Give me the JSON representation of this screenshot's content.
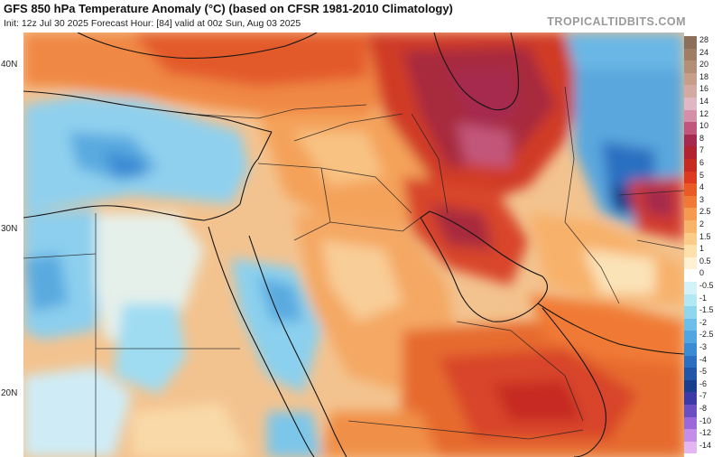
{
  "header": {
    "title": "GFS 850 hPa Temperature Anomaly (°C) (based on CFSR 1981-2010 Climatology)",
    "subtitle": "Init: 12z Jul 30 2025   Forecast Hour: [84]   valid at 00z Sun, Aug 03 2025",
    "brand": "TROPICALTIDBITS.COM"
  },
  "map": {
    "lat_labels": [
      "40N",
      "30N",
      "20N"
    ]
  },
  "colorbar": {
    "levels": [
      {
        "label": "28",
        "color": "#8c6f5a"
      },
      {
        "label": "24",
        "color": "#a07e66"
      },
      {
        "label": "20",
        "color": "#b38f78"
      },
      {
        "label": "18",
        "color": "#c79e8a"
      },
      {
        "label": "16",
        "color": "#d2aaa1"
      },
      {
        "label": "14",
        "color": "#e0b8c3"
      },
      {
        "label": "12",
        "color": "#d58fa8"
      },
      {
        "label": "10",
        "color": "#c2567a"
      },
      {
        "label": "8",
        "color": "#a52a4e"
      },
      {
        "label": "7",
        "color": "#b32230"
      },
      {
        "label": "6",
        "color": "#c62a22"
      },
      {
        "label": "5",
        "color": "#dd3a1f"
      },
      {
        "label": "4",
        "color": "#ea5a26"
      },
      {
        "label": "3",
        "color": "#f07a35"
      },
      {
        "label": "2.5",
        "color": "#f59a4e"
      },
      {
        "label": "2",
        "color": "#f8b46a"
      },
      {
        "label": "1.5",
        "color": "#fbcb8a"
      },
      {
        "label": "1",
        "color": "#fde0ab"
      },
      {
        "label": "0.5",
        "color": "#fff1d2"
      },
      {
        "label": "0",
        "color": "#ffffff"
      },
      {
        "label": "-0.5",
        "color": "#d4f3f8"
      },
      {
        "label": "-1",
        "color": "#b3e8f3"
      },
      {
        "label": "-1.5",
        "color": "#8fd6ee"
      },
      {
        "label": "-2",
        "color": "#6cbfe8"
      },
      {
        "label": "-2.5",
        "color": "#4fa6e0"
      },
      {
        "label": "-3",
        "color": "#3a8bd4"
      },
      {
        "label": "-4",
        "color": "#2c6fc1"
      },
      {
        "label": "-5",
        "color": "#2055a8"
      },
      {
        "label": "-6",
        "color": "#183f8c"
      },
      {
        "label": "-7",
        "color": "#3b3aa6"
      },
      {
        "label": "-8",
        "color": "#6a4fc3"
      },
      {
        "label": "-10",
        "color": "#9a6ad8"
      },
      {
        "label": "-12",
        "color": "#c58ee6"
      },
      {
        "label": "-14",
        "color": "#e4b6f0"
      }
    ]
  }
}
